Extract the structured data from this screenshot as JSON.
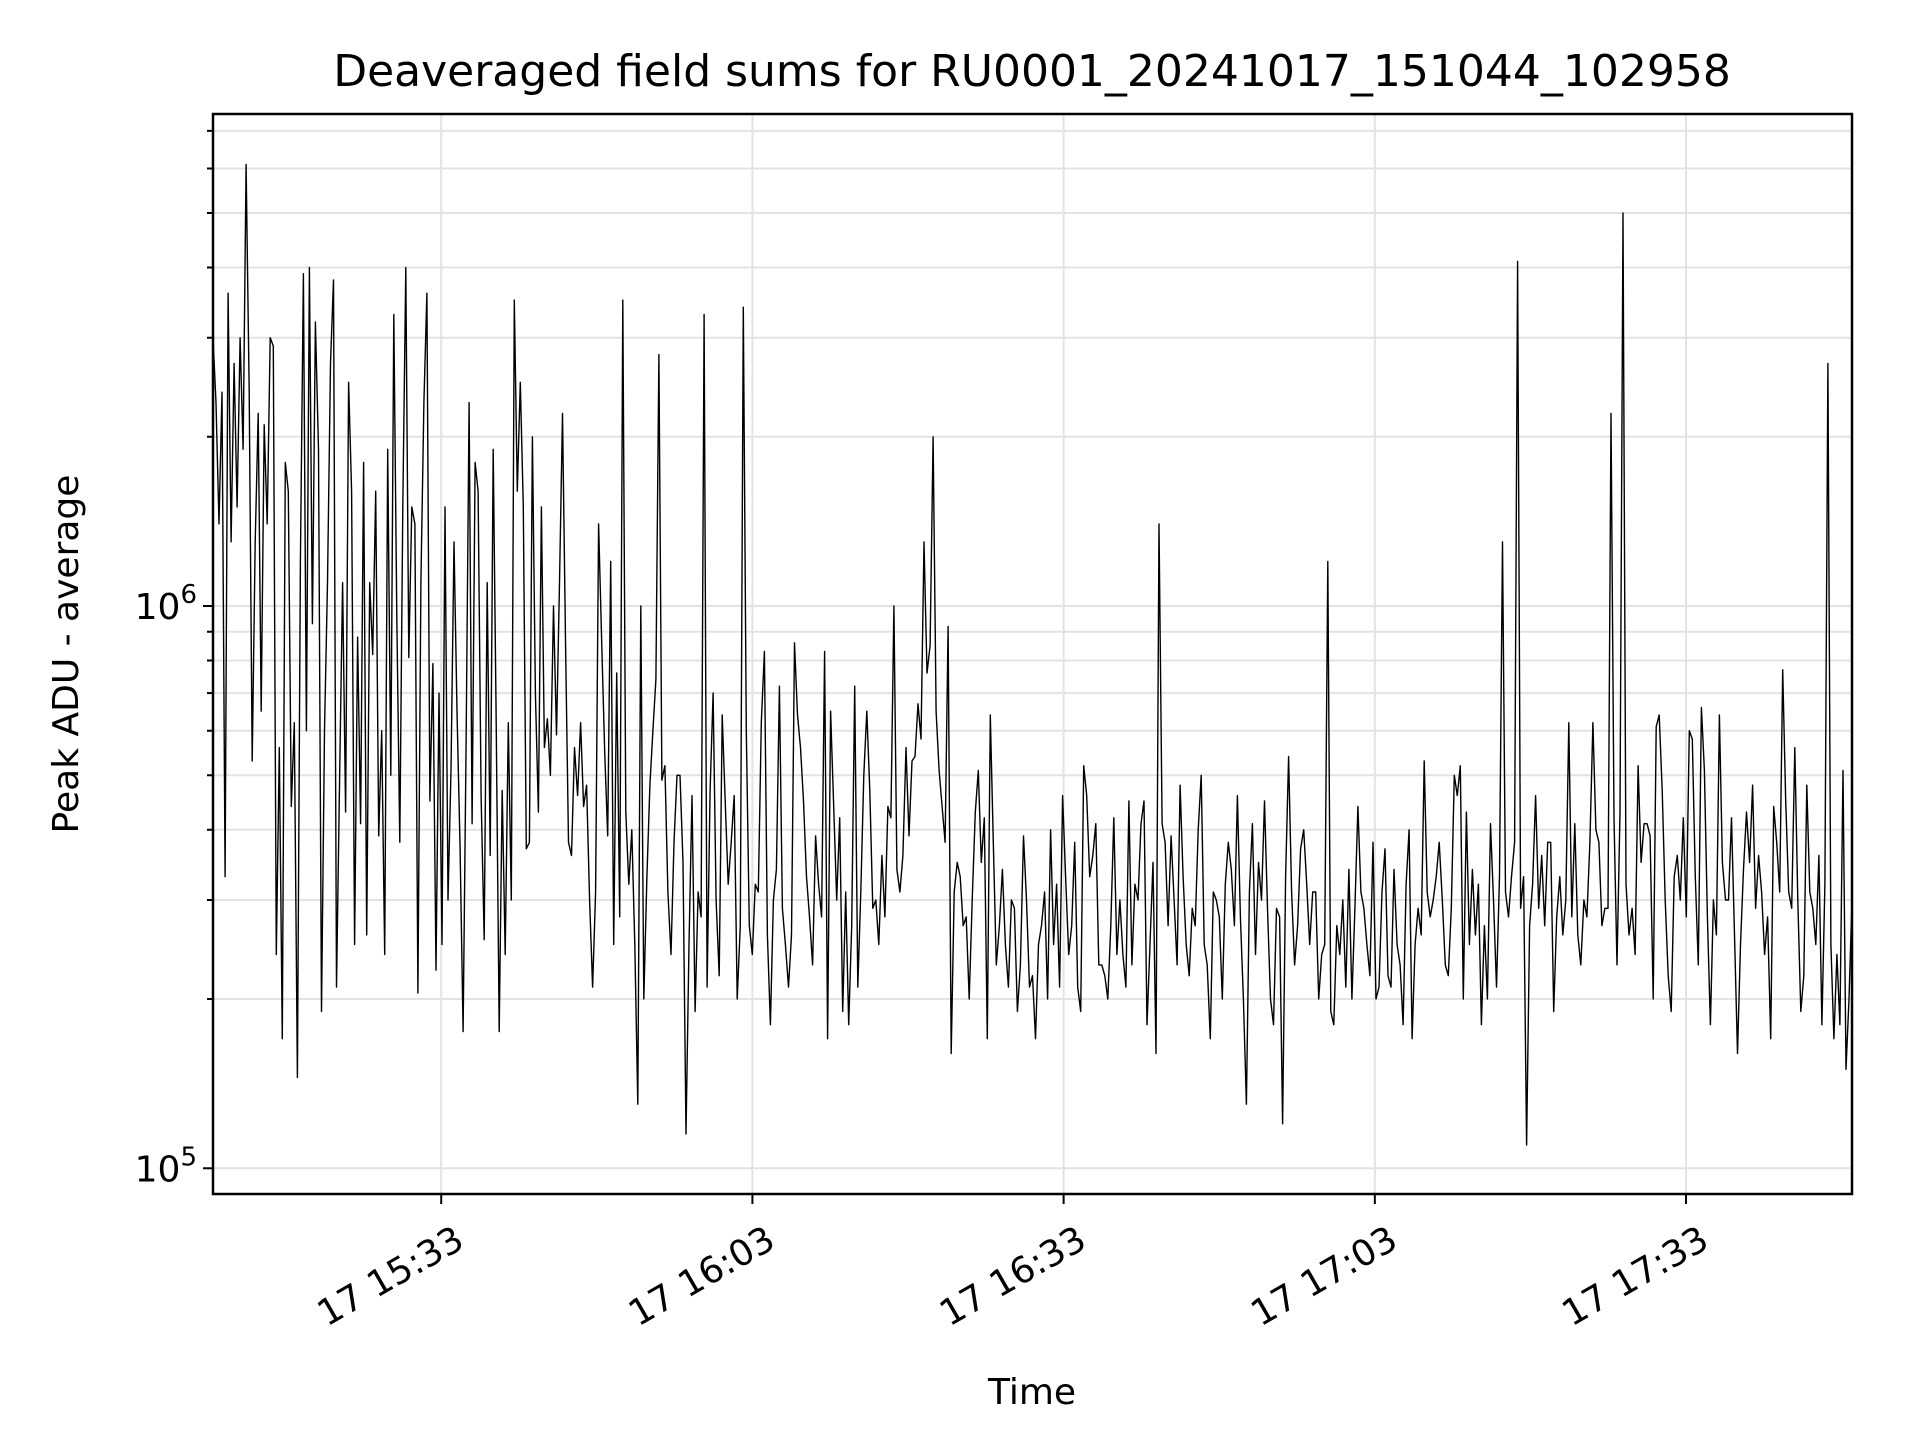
{
  "chart_data": {
    "type": "line",
    "title": "Deaveraged field sums for RU0001_20241017_151044_102958",
    "xlabel": "Time",
    "ylabel": "Peak ADU - average",
    "yscale": "log",
    "ylim": [
      90000,
      7500000
    ],
    "xlim": [
      "2024-10-17T15:11:00",
      "2024-10-17T17:49:00"
    ],
    "x_ticks": [
      {
        "time": "2024-10-17T15:33:00",
        "label": "17 15:33"
      },
      {
        "time": "2024-10-17T16:03:00",
        "label": "17 16:03"
      },
      {
        "time": "2024-10-17T16:33:00",
        "label": "17 16:33"
      },
      {
        "time": "2024-10-17T17:03:00",
        "label": "17 17:03"
      },
      {
        "time": "2024-10-17T17:33:00",
        "label": "17 17:33"
      }
    ],
    "y_ticks": [
      {
        "value": 100000,
        "base": "10",
        "exp": "5"
      },
      {
        "value": 1000000,
        "base": "10",
        "exp": "6"
      }
    ],
    "y_minor_ticks": [
      200000,
      300000,
      400000,
      500000,
      600000,
      700000,
      800000,
      900000,
      2000000,
      3000000,
      4000000,
      5000000,
      6000000,
      7000000
    ],
    "grid": true,
    "series": [
      {
        "color": "#000000",
        "x_start": "2024-10-17T15:11:00",
        "x_end": "2024-10-17T17:49:00",
        "values": [
          3000000,
          2300000,
          1400000,
          2400000,
          330000,
          3600000,
          1300000,
          2700000,
          1500000,
          3000000,
          1900000,
          6100000,
          2400000,
          530000,
          1300000,
          2200000,
          650000,
          2100000,
          1400000,
          3000000,
          2900000,
          240000,
          560000,
          170000,
          1800000,
          1600000,
          440000,
          620000,
          145000,
          1200000,
          3900000,
          600000,
          4000000,
          930000,
          3200000,
          1900000,
          190000,
          600000,
          1100000,
          2700000,
          3800000,
          210000,
          480000,
          1100000,
          430000,
          2500000,
          1600000,
          250000,
          880000,
          410000,
          1800000,
          260000,
          1100000,
          820000,
          1600000,
          390000,
          600000,
          240000,
          1900000,
          500000,
          3300000,
          960000,
          380000,
          1500000,
          4000000,
          810000,
          1500000,
          1400000,
          205000,
          1100000,
          2300000,
          3600000,
          450000,
          790000,
          225000,
          700000,
          250000,
          1500000,
          300000,
          510000,
          1300000,
          650000,
          370000,
          175000,
          570000,
          2300000,
          410000,
          1800000,
          1600000,
          460000,
          255000,
          1100000,
          360000,
          1900000,
          620000,
          175000,
          470000,
          240000,
          620000,
          300000,
          3500000,
          1600000,
          2500000,
          1500000,
          370000,
          380000,
          2000000,
          700000,
          430000,
          1500000,
          560000,
          630000,
          500000,
          1000000,
          590000,
          1100000,
          2200000,
          870000,
          380000,
          360000,
          560000,
          460000,
          620000,
          440000,
          480000,
          300000,
          210000,
          310000,
          1400000,
          860000,
          550000,
          390000,
          1200000,
          250000,
          760000,
          280000,
          3500000,
          430000,
          320000,
          400000,
          250000,
          130000,
          1000000,
          200000,
          330000,
          480000,
          600000,
          740000,
          2800000,
          490000,
          520000,
          310000,
          240000,
          380000,
          500000,
          500000,
          350000,
          115000,
          250000,
          460000,
          190000,
          310000,
          280000,
          3300000,
          210000,
          470000,
          700000,
          300000,
          220000,
          640000,
          450000,
          320000,
          380000,
          460000,
          200000,
          270000,
          3400000,
          600000,
          270000,
          240000,
          320000,
          310000,
          620000,
          830000,
          260000,
          180000,
          300000,
          340000,
          720000,
          290000,
          250000,
          210000,
          260000,
          860000,
          640000,
          560000,
          450000,
          330000,
          280000,
          230000,
          390000,
          320000,
          280000,
          830000,
          170000,
          650000,
          440000,
          300000,
          420000,
          190000,
          310000,
          180000,
          270000,
          720000,
          210000,
          310000,
          500000,
          650000,
          470000,
          290000,
          300000,
          250000,
          360000,
          280000,
          440000,
          420000,
          1000000,
          340000,
          310000,
          360000,
          560000,
          390000,
          530000,
          540000,
          670000,
          580000,
          1300000,
          760000,
          850000,
          2000000,
          650000,
          510000,
          440000,
          380000,
          920000,
          160000,
          310000,
          350000,
          330000,
          270000,
          280000,
          200000,
          300000,
          430000,
          510000,
          350000,
          420000,
          170000,
          640000,
          380000,
          230000,
          270000,
          340000,
          250000,
          210000,
          300000,
          290000,
          190000,
          230000,
          390000,
          300000,
          210000,
          220000,
          170000,
          250000,
          270000,
          310000,
          200000,
          400000,
          250000,
          320000,
          210000,
          460000,
          330000,
          240000,
          270000,
          380000,
          210000,
          190000,
          520000,
          460000,
          330000,
          360000,
          410000,
          230000,
          230000,
          220000,
          200000,
          270000,
          420000,
          240000,
          300000,
          240000,
          210000,
          450000,
          230000,
          320000,
          300000,
          410000,
          450000,
          180000,
          250000,
          350000,
          160000,
          1400000,
          410000,
          380000,
          270000,
          390000,
          300000,
          230000,
          480000,
          330000,
          250000,
          220000,
          290000,
          270000,
          400000,
          500000,
          250000,
          230000,
          170000,
          310000,
          300000,
          280000,
          200000,
          320000,
          380000,
          340000,
          270000,
          460000,
          280000,
          200000,
          130000,
          310000,
          410000,
          240000,
          350000,
          300000,
          450000,
          290000,
          200000,
          180000,
          290000,
          280000,
          120000,
          330000,
          540000,
          310000,
          230000,
          270000,
          370000,
          400000,
          320000,
          250000,
          310000,
          310000,
          200000,
          240000,
          250000,
          1200000,
          190000,
          180000,
          270000,
          240000,
          300000,
          210000,
          340000,
          200000,
          290000,
          440000,
          310000,
          290000,
          250000,
          220000,
          380000,
          200000,
          210000,
          310000,
          370000,
          220000,
          210000,
          340000,
          250000,
          230000,
          180000,
          320000,
          400000,
          170000,
          250000,
          290000,
          260000,
          530000,
          310000,
          280000,
          300000,
          330000,
          380000,
          300000,
          230000,
          220000,
          290000,
          500000,
          460000,
          520000,
          200000,
          430000,
          250000,
          340000,
          260000,
          320000,
          180000,
          270000,
          200000,
          410000,
          300000,
          210000,
          330000,
          1300000,
          310000,
          280000,
          330000,
          380000,
          4100000,
          290000,
          330000,
          110000,
          270000,
          320000,
          460000,
          290000,
          360000,
          270000,
          380000,
          380000,
          190000,
          280000,
          330000,
          260000,
          300000,
          620000,
          280000,
          410000,
          260000,
          230000,
          300000,
          280000,
          380000,
          620000,
          400000,
          380000,
          270000,
          290000,
          290000,
          2200000,
          420000,
          230000,
          430000,
          5000000,
          320000,
          260000,
          290000,
          240000,
          520000,
          350000,
          410000,
          410000,
          390000,
          200000,
          610000,
          640000,
          470000,
          300000,
          220000,
          190000,
          330000,
          360000,
          300000,
          420000,
          280000,
          600000,
          580000,
          330000,
          230000,
          660000,
          510000,
          280000,
          180000,
          300000,
          260000,
          640000,
          350000,
          300000,
          300000,
          420000,
          260000,
          160000,
          250000,
          340000,
          430000,
          350000,
          480000,
          290000,
          360000,
          310000,
          240000,
          280000,
          170000,
          440000,
          380000,
          310000,
          770000,
          450000,
          310000,
          290000,
          560000,
          300000,
          190000,
          220000,
          480000,
          310000,
          290000,
          250000,
          360000,
          180000,
          320000,
          2700000,
          250000,
          170000,
          240000,
          180000,
          510000,
          150000,
          200000,
          300000
        ]
      }
    ]
  }
}
